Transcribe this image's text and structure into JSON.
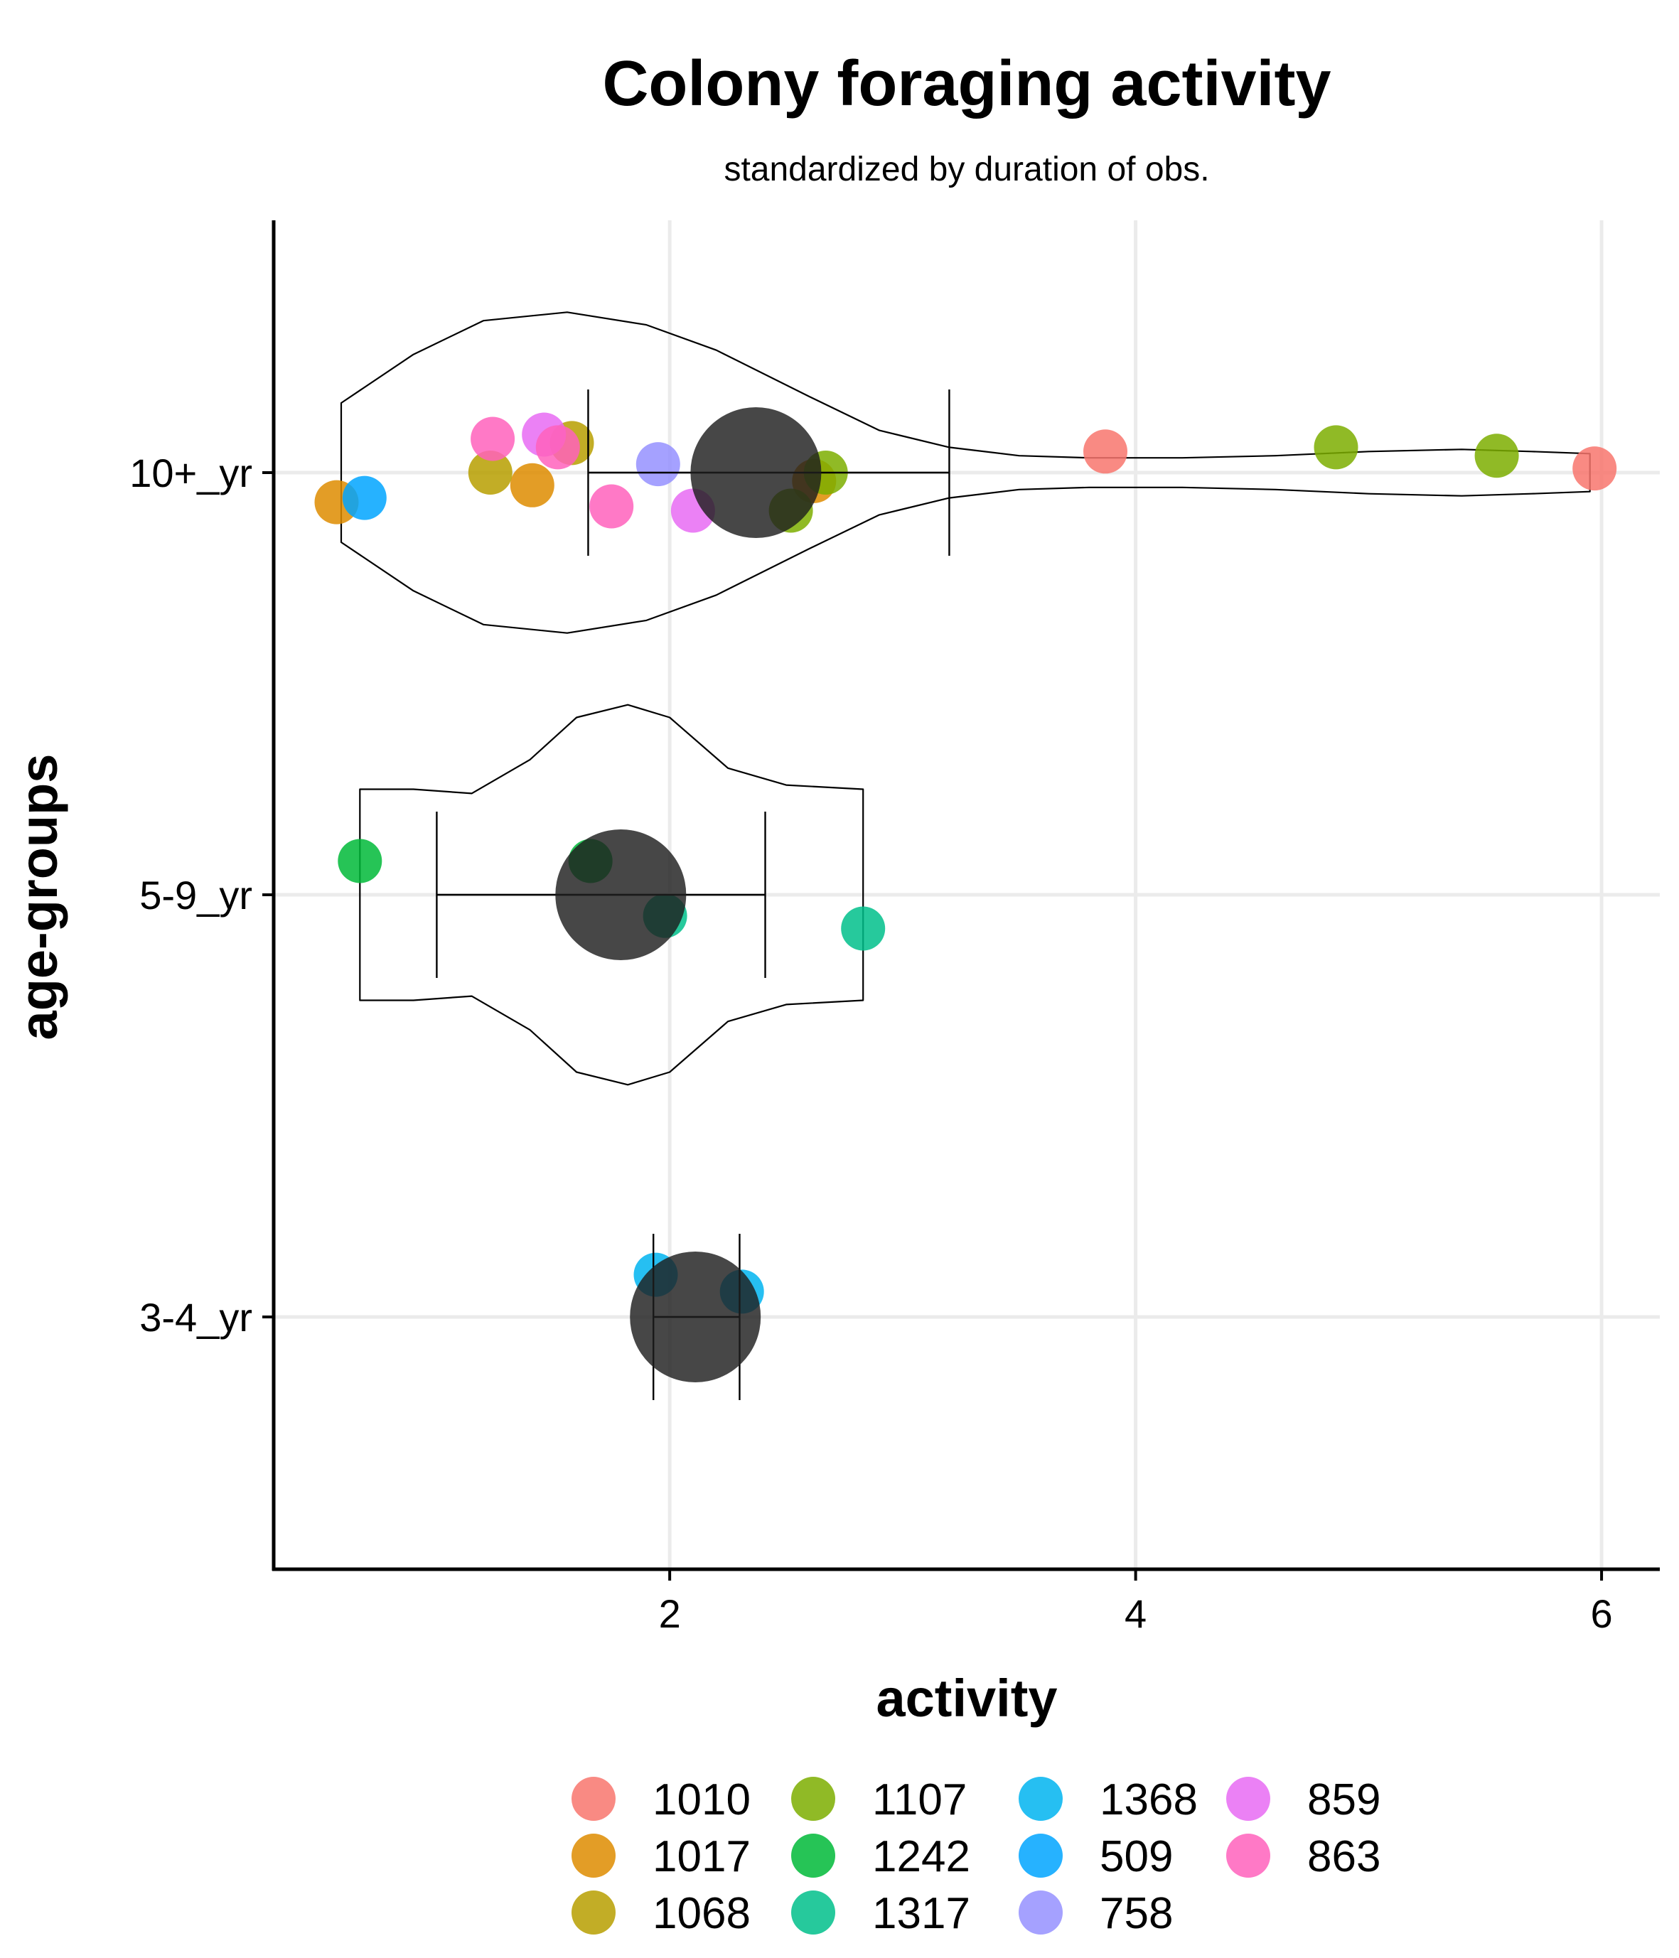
{
  "chart_data": {
    "type": "scatter",
    "title": "Colony foraging activity",
    "subtitle": "standardized by duration of obs.",
    "xlabel": "activity",
    "ylabel": "age-groups",
    "xlim": [
      0.3,
      6.25
    ],
    "x_ticks": [
      2,
      4,
      6
    ],
    "y_categories": [
      "10+_yr",
      "5-9_yr",
      "3-4_yr"
    ],
    "grid": true,
    "legend_position": "bottom",
    "legend_entries": [
      {
        "label": "1010",
        "color": "#F8766D"
      },
      {
        "label": "1017",
        "color": "#DE8C00"
      },
      {
        "label": "1068",
        "color": "#B79F00"
      },
      {
        "label": "1107",
        "color": "#7CAE00"
      },
      {
        "label": "1242",
        "color": "#00BA38"
      },
      {
        "label": "1317",
        "color": "#00C08B"
      },
      {
        "label": "1368",
        "color": "#00B4F0"
      },
      {
        "label": "509",
        "color": "#00A5FF"
      },
      {
        "label": "758",
        "color": "#9590FF"
      },
      {
        "label": "859",
        "color": "#E76BF3"
      },
      {
        "label": "863",
        "color": "#FF62BC"
      }
    ],
    "points": [
      {
        "group": "10+_yr",
        "colony": "1010",
        "x": 3.87,
        "jitter": 0.05
      },
      {
        "group": "10+_yr",
        "colony": "1010",
        "x": 5.97,
        "jitter": 0.01
      },
      {
        "group": "10+_yr",
        "colony": "1017",
        "x": 0.57,
        "jitter": -0.07
      },
      {
        "group": "10+_yr",
        "colony": "1017",
        "x": 1.41,
        "jitter": -0.03
      },
      {
        "group": "10+_yr",
        "colony": "1017",
        "x": 2.62,
        "jitter": -0.02
      },
      {
        "group": "10+_yr",
        "colony": "1068",
        "x": 1.23,
        "jitter": 0.0
      },
      {
        "group": "10+_yr",
        "colony": "1068",
        "x": 1.58,
        "jitter": 0.07
      },
      {
        "group": "10+_yr",
        "colony": "1107",
        "x": 2.52,
        "jitter": -0.09
      },
      {
        "group": "10+_yr",
        "colony": "1107",
        "x": 2.67,
        "jitter": 0.0
      },
      {
        "group": "10+_yr",
        "colony": "1107",
        "x": 4.86,
        "jitter": 0.06
      },
      {
        "group": "10+_yr",
        "colony": "1107",
        "x": 5.55,
        "jitter": 0.04
      },
      {
        "group": "10+_yr",
        "colony": "509",
        "x": 0.69,
        "jitter": -0.06
      },
      {
        "group": "10+_yr",
        "colony": "758",
        "x": 1.95,
        "jitter": 0.02
      },
      {
        "group": "10+_yr",
        "colony": "859",
        "x": 1.46,
        "jitter": 0.09
      },
      {
        "group": "10+_yr",
        "colony": "859",
        "x": 2.1,
        "jitter": -0.09
      },
      {
        "group": "10+_yr",
        "colony": "863",
        "x": 1.24,
        "jitter": 0.08
      },
      {
        "group": "10+_yr",
        "colony": "863",
        "x": 1.52,
        "jitter": 0.06
      },
      {
        "group": "10+_yr",
        "colony": "863",
        "x": 1.75,
        "jitter": -0.08
      },
      {
        "group": "5-9_yr",
        "colony": "1242",
        "x": 0.67,
        "jitter": 0.08
      },
      {
        "group": "5-9_yr",
        "colony": "1242",
        "x": 1.66,
        "jitter": 0.08
      },
      {
        "group": "5-9_yr",
        "colony": "1317",
        "x": 1.98,
        "jitter": -0.05
      },
      {
        "group": "5-9_yr",
        "colony": "1317",
        "x": 2.83,
        "jitter": -0.08
      },
      {
        "group": "3-4_yr",
        "colony": "1368",
        "x": 1.94,
        "jitter": 0.1
      },
      {
        "group": "3-4_yr",
        "colony": "1368",
        "x": 2.31,
        "jitter": 0.06
      }
    ],
    "means": [
      {
        "group": "10+_yr",
        "mean": 2.37,
        "lower": 1.65,
        "upper": 3.2
      },
      {
        "group": "5-9_yr",
        "mean": 1.79,
        "lower": 1.0,
        "upper": 2.41
      },
      {
        "group": "3-4_yr",
        "mean": 2.11,
        "lower": 1.93,
        "upper": 2.3
      }
    ],
    "violins": [
      {
        "group": "10+_yr",
        "profile": [
          [
            0.59,
            0.165
          ],
          [
            0.9,
            0.28
          ],
          [
            1.2,
            0.36
          ],
          [
            1.56,
            0.38
          ],
          [
            1.9,
            0.35
          ],
          [
            2.2,
            0.29
          ],
          [
            2.6,
            0.18
          ],
          [
            2.9,
            0.1
          ],
          [
            3.2,
            0.06
          ],
          [
            3.5,
            0.04
          ],
          [
            3.8,
            0.035
          ],
          [
            4.2,
            0.035
          ],
          [
            4.6,
            0.04
          ],
          [
            5.0,
            0.05
          ],
          [
            5.4,
            0.055
          ],
          [
            5.7,
            0.05
          ],
          [
            5.95,
            0.045
          ]
        ]
      },
      {
        "group": "5-9_yr",
        "profile": [
          [
            0.67,
            0.25
          ],
          [
            0.9,
            0.25
          ],
          [
            1.15,
            0.24
          ],
          [
            1.4,
            0.32
          ],
          [
            1.6,
            0.42
          ],
          [
            1.82,
            0.45
          ],
          [
            2.0,
            0.42
          ],
          [
            2.25,
            0.3
          ],
          [
            2.5,
            0.26
          ],
          [
            2.83,
            0.25
          ]
        ]
      }
    ]
  },
  "legend": {
    "items": [
      {
        "label": "1010",
        "color": "#F8766D"
      },
      {
        "label": "1017",
        "color": "#DE8C00"
      },
      {
        "label": "1068",
        "color": "#B79F00"
      },
      {
        "label": "1107",
        "color": "#7CAE00"
      },
      {
        "label": "1242",
        "color": "#00BA38"
      },
      {
        "label": "1317",
        "color": "#00C08B"
      },
      {
        "label": "1368",
        "color": "#00B4F0"
      },
      {
        "label": "509",
        "color": "#00A5FF"
      },
      {
        "label": "758",
        "color": "#9590FF"
      },
      {
        "label": "859",
        "color": "#E76BF3"
      },
      {
        "label": "863",
        "color": "#FF62BC"
      }
    ]
  }
}
